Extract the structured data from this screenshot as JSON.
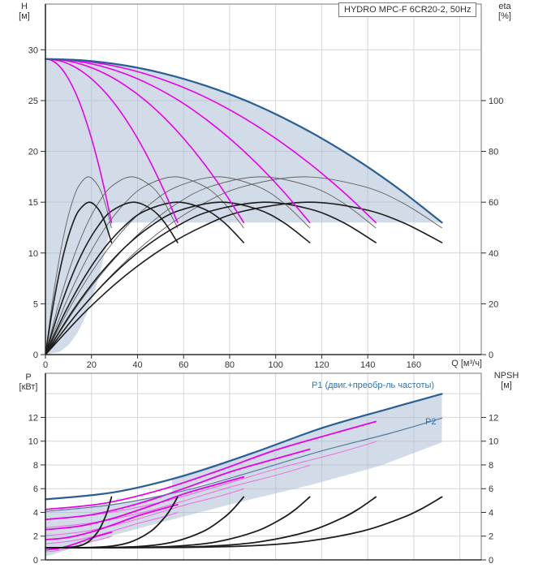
{
  "title_box": {
    "text": "HYDRO MPC-F 6CR20-2, 50Hz"
  },
  "labels": {
    "h_name": "H",
    "h_unit": "[м]",
    "eta_name": "eta",
    "eta_unit": "[%]",
    "q_label": "Q [м³/ч]",
    "p_name": "P",
    "p_unit": "[кВт]",
    "npsh_name": "NPSH",
    "npsh_unit": "[м]"
  },
  "bottom_chart": {
    "p1_label": "P1 (двиг.+преобр-ль частоты)",
    "p2_label": "P2"
  },
  "colors": {
    "shade": "rgba(165,185,210,0.5)",
    "blue": "#2a5f94",
    "blue_thin": "#537a9e",
    "magenta": "#e800e8",
    "magenta_thin": "#ef6ae0",
    "black": "#1c1c1c",
    "gray": "#5f5f5f",
    "grid": "#d6d6d6",
    "border": "#777777",
    "axis": "#2e2e2e",
    "label": "#333333"
  },
  "chart_data": [
    {
      "id": "qh",
      "type": "line",
      "title": "HYDRO MPC-F 6CR20-2, 50Hz",
      "xlabel": "Q [м³/ч]",
      "ylabel": "H [м]",
      "y2label": "eta [%]",
      "xlim": [
        0,
        189.3
      ],
      "ylim": [
        0,
        34.5
      ],
      "y2lim": [
        0,
        138
      ],
      "grid": true,
      "x_ticks": [
        0,
        20,
        40,
        60,
        80,
        100,
        120,
        140,
        160
      ],
      "grid_x_extra": [
        180
      ],
      "y_ticks": [
        0,
        5,
        10,
        15,
        20,
        25,
        30
      ],
      "y2_ticks": [
        0,
        20,
        40,
        60,
        80,
        100
      ],
      "show_x_labels": true,
      "pump_info": {
        "pumps": 6,
        "q_end_per_pump_m3h": 28.7,
        "shutoff_head_m": 29.1,
        "head_at_max_flow_m": 13,
        "eta_pump_peak_pct": 70,
        "eta_total_peak_pct": 60
      },
      "profiles": {
        "pump": {
          "x": [
            0,
            0.1,
            0.2,
            0.3,
            0.4,
            0.5,
            0.6,
            0.7,
            0.8,
            0.9,
            1
          ],
          "y": [
            29.1,
            28.94,
            28.46,
            27.65,
            26.52,
            25.08,
            23.3,
            21.21,
            18.8,
            16.06,
            13.0
          ]
        },
        "eta_thin": {
          "x": [
            0,
            0.1,
            0.2,
            0.3,
            0.4,
            0.5,
            0.651,
            0.8,
            0.9,
            1
          ],
          "y": [
            0,
            19.9,
            36.4,
            49.7,
            59.6,
            66.2,
            70,
            66.3,
            59.8,
            49.9
          ]
        },
        "eta_thick": {
          "x": [
            0,
            0.1,
            0.2,
            0.3,
            0.4,
            0.5,
            0.66,
            0.8,
            0.9,
            1
          ],
          "y": [
            0,
            16.8,
            30.9,
            42.2,
            50.7,
            56.5,
            60,
            57.3,
            52.1,
            44.1
          ]
        }
      },
      "regions": [
        {
          "name": "operating-envelope",
          "color": "shade",
          "axis": "y",
          "points": [
            [
              0,
              29.1
            ],
            [
              17.2,
              28.94
            ],
            [
              34.4,
              28.46
            ],
            [
              51.7,
              27.65
            ],
            [
              68.9,
              26.52
            ],
            [
              86.1,
              25.08
            ],
            [
              103.3,
              23.3
            ],
            [
              120.5,
              21.21
            ],
            [
              137.8,
              18.8
            ],
            [
              155,
              16.06
            ],
            [
              172.2,
              13
            ],
            [
              120,
              13
            ],
            [
              70,
              13
            ],
            [
              28.7,
              13
            ],
            [
              26,
              10.15
            ],
            [
              22,
              6.69
            ],
            [
              18,
              4.05
            ],
            [
              14,
              2.16
            ],
            [
              10,
              0.93
            ],
            [
              6,
              0.26
            ],
            [
              0,
              0
            ]
          ]
        }
      ],
      "series": [
        {
          "name": "eta-pump-1",
          "profile": "eta_thin",
          "x_scale": 28.7,
          "axis": "y2",
          "color": "gray",
          "width": 0.9
        },
        {
          "name": "eta-pump-2",
          "profile": "eta_thin",
          "x_scale": 57.4,
          "axis": "y2",
          "color": "gray",
          "width": 0.9
        },
        {
          "name": "eta-pump-3",
          "profile": "eta_thin",
          "x_scale": 86.1,
          "axis": "y2",
          "color": "gray",
          "width": 0.9
        },
        {
          "name": "eta-pump-4",
          "profile": "eta_thin",
          "x_scale": 114.8,
          "axis": "y2",
          "color": "gray",
          "width": 0.9
        },
        {
          "name": "eta-pump-5",
          "profile": "eta_thin",
          "x_scale": 143.5,
          "axis": "y2",
          "color": "gray",
          "width": 0.9
        },
        {
          "name": "eta-pump-6",
          "profile": "eta_thin",
          "x_scale": 172.2,
          "axis": "y2",
          "color": "gray",
          "width": 0.9
        },
        {
          "name": "eta-total-1",
          "profile": "eta_thick",
          "x_scale": 28.7,
          "axis": "y2",
          "color": "black",
          "width": 1.6
        },
        {
          "name": "eta-total-2",
          "profile": "eta_thick",
          "x_scale": 57.4,
          "axis": "y2",
          "color": "black",
          "width": 1.6
        },
        {
          "name": "eta-total-3",
          "profile": "eta_thick",
          "x_scale": 86.1,
          "axis": "y2",
          "color": "black",
          "width": 1.6
        },
        {
          "name": "eta-total-4",
          "profile": "eta_thick",
          "x_scale": 114.8,
          "axis": "y2",
          "color": "black",
          "width": 1.6
        },
        {
          "name": "eta-total-5",
          "profile": "eta_thick",
          "x_scale": 143.5,
          "axis": "y2",
          "color": "black",
          "width": 1.6
        },
        {
          "name": "eta-total-6",
          "profile": "eta_thick",
          "x_scale": 172.2,
          "axis": "y2",
          "color": "black",
          "width": 1.6
        },
        {
          "name": "pump-curve-1",
          "profile": "pump",
          "x_scale": 28.7,
          "axis": "y",
          "color": "magenta",
          "width": 1.6
        },
        {
          "name": "pump-curve-2",
          "profile": "pump",
          "x_scale": 57.4,
          "axis": "y",
          "color": "magenta",
          "width": 1.6
        },
        {
          "name": "pump-curve-3",
          "profile": "pump",
          "x_scale": 86.1,
          "axis": "y",
          "color": "magenta",
          "width": 1.6
        },
        {
          "name": "pump-curve-4",
          "profile": "pump",
          "x_scale": 114.8,
          "axis": "y",
          "color": "magenta",
          "width": 1.6
        },
        {
          "name": "pump-curve-5",
          "profile": "pump",
          "x_scale": 143.5,
          "axis": "y",
          "color": "magenta",
          "width": 1.6
        },
        {
          "name": "pump-curve-6-max",
          "profile": "pump",
          "x_scale": 172.2,
          "axis": "y",
          "color": "blue",
          "width": 2.2
        }
      ]
    },
    {
      "id": "power",
      "type": "line",
      "xlabel": "Q [м³/ч]",
      "ylabel": "P [кВт]",
      "y2label": "NPSH [м]",
      "xlim": [
        0,
        189.3
      ],
      "ylim": [
        0,
        15.72
      ],
      "y2lim": [
        0,
        15.72
      ],
      "grid": true,
      "x_ticks": [
        0,
        20,
        40,
        60,
        80,
        100,
        120,
        140,
        160
      ],
      "grid_x_extra": [
        180
      ],
      "y_ticks": [
        0,
        2,
        4,
        6,
        8,
        10,
        12
      ],
      "grid_y_extra": [
        14
      ],
      "y2_ticks": [
        0,
        2,
        4,
        6,
        8,
        10,
        12
      ],
      "show_x_labels": false,
      "profiles": {
        "p1": {
          "x": [
            0,
            5,
            10,
            15,
            20,
            25,
            28.7
          ],
          "y": [
            0.85,
            0.95,
            1.18,
            1.5,
            1.85,
            2.13,
            2.33
          ]
        },
        "p2": {
          "x": [
            0,
            5,
            10,
            15,
            20,
            25,
            28.7
          ],
          "y": [
            0.68,
            0.78,
            0.97,
            1.24,
            1.53,
            1.78,
            1.99
          ]
        },
        "npsh": {
          "x": [
            0,
            8.61,
            14.35,
            18.66,
            22.96,
            25.83,
            27.27,
            28.7
          ],
          "y": [
            1.03,
            1.04,
            1.16,
            1.53,
            2.43,
            3.55,
            4.33,
            5.3
          ]
        }
      },
      "regions": [
        {
          "name": "power-band-lower",
          "color": "shade",
          "axis": "y",
          "points": [
            [
              0,
              4.08
            ],
            [
              30,
              4.68
            ],
            [
              60,
              5.82
            ],
            [
              90,
              7.44
            ],
            [
              120,
              9.18
            ],
            [
              150,
              10.68
            ],
            [
              172.2,
              11.94
            ],
            [
              172.2,
              9.9
            ],
            [
              145,
              7.9
            ],
            [
              115,
              6.3
            ],
            [
              85,
              4.9
            ],
            [
              55,
              3.4
            ],
            [
              30,
              2.1
            ],
            [
              12,
              1.0
            ],
            [
              3,
              0.45
            ],
            [
              0,
              0.3
            ]
          ]
        },
        {
          "name": "power-band-upper",
          "color": "shade",
          "axis": "y",
          "points": [
            [
              55,
              6.9
            ],
            [
              90,
              9.0
            ],
            [
              120,
              11.1
            ],
            [
              150,
              12.78
            ],
            [
              172.2,
              13.98
            ],
            [
              172.2,
              11.94
            ],
            [
              150,
              10.68
            ],
            [
              120,
              9.18
            ],
            [
              90,
              7.44
            ],
            [
              55,
              5.7
            ]
          ]
        }
      ],
      "series": [
        {
          "name": "p2-curve-1",
          "profile": "p2",
          "x_scale": 1,
          "y_scale": 1,
          "axis": "y",
          "color": "magenta_thin",
          "width": 1
        },
        {
          "name": "p2-curve-2",
          "profile": "p2",
          "x_scale": 2,
          "y_scale": 2,
          "axis": "y",
          "color": "magenta_thin",
          "width": 1
        },
        {
          "name": "p2-curve-3",
          "profile": "p2",
          "x_scale": 3,
          "y_scale": 3,
          "axis": "y",
          "color": "magenta_thin",
          "width": 1
        },
        {
          "name": "p2-curve-4",
          "profile": "p2",
          "x_scale": 4,
          "y_scale": 4,
          "axis": "y",
          "color": "magenta_thin",
          "width": 1
        },
        {
          "name": "p2-curve-5",
          "profile": "p2",
          "x_scale": 5,
          "y_scale": 5,
          "axis": "y",
          "color": "magenta_thin",
          "width": 1
        },
        {
          "name": "p1-curve-1",
          "profile": "p1",
          "x_scale": 1,
          "y_scale": 1,
          "axis": "y",
          "color": "magenta",
          "width": 1.8
        },
        {
          "name": "p1-curve-2",
          "profile": "p1",
          "x_scale": 2,
          "y_scale": 2,
          "axis": "y",
          "color": "magenta",
          "width": 1.8
        },
        {
          "name": "p1-curve-3",
          "profile": "p1",
          "x_scale": 3,
          "y_scale": 3,
          "axis": "y",
          "color": "magenta",
          "width": 1.8
        },
        {
          "name": "p1-curve-4",
          "profile": "p1",
          "x_scale": 4,
          "y_scale": 4,
          "axis": "y",
          "color": "magenta",
          "width": 1.8
        },
        {
          "name": "p1-curve-5",
          "profile": "p1",
          "x_scale": 5,
          "y_scale": 5,
          "axis": "y",
          "color": "magenta",
          "width": 1.8
        },
        {
          "name": "npsh-curve-1",
          "profile": "npsh",
          "x_scale": 1,
          "y_scale": 1,
          "axis": "y",
          "color": "black",
          "width": 1.8
        },
        {
          "name": "npsh-curve-2",
          "profile": "npsh",
          "x_scale": 2,
          "y_scale": 1,
          "axis": "y",
          "color": "black",
          "width": 1.8
        },
        {
          "name": "npsh-curve-3",
          "profile": "npsh",
          "x_scale": 3,
          "y_scale": 1,
          "axis": "y",
          "color": "black",
          "width": 1.8
        },
        {
          "name": "npsh-curve-4",
          "profile": "npsh",
          "x_scale": 4,
          "y_scale": 1,
          "axis": "y",
          "color": "black",
          "width": 1.8
        },
        {
          "name": "npsh-curve-5",
          "profile": "npsh",
          "x_scale": 5,
          "y_scale": 1,
          "axis": "y",
          "color": "black",
          "width": 1.8
        },
        {
          "name": "npsh-curve-6",
          "profile": "npsh",
          "x_scale": 6,
          "y_scale": 1,
          "axis": "y",
          "color": "black",
          "width": 1.8
        },
        {
          "name": "p2-curve-6",
          "profile": "p2",
          "x_scale": 6,
          "y_scale": 6,
          "axis": "y",
          "color": "blue_thin",
          "width": 1.2
        },
        {
          "name": "p1-curve-6",
          "profile": "p1",
          "x_scale": 6,
          "y_scale": 6,
          "axis": "y",
          "color": "blue",
          "width": 2.2
        }
      ]
    }
  ]
}
